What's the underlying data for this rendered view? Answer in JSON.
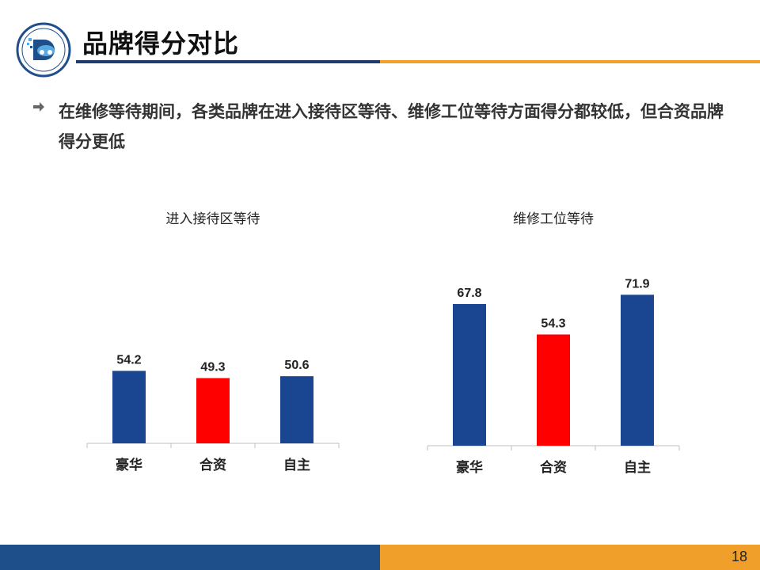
{
  "slide": {
    "title": "品牌得分对比",
    "bullet": "在维修等待期间，各类品牌在进入接待区等待、维修工位等待方面得分都较低，但合资品牌得分更低",
    "page_number": "18"
  },
  "colors": {
    "bar_primary": "#1a4591",
    "bar_highlight": "#ff0000",
    "title_rule_blue": "#1f3a6e",
    "accent_orange": "#f0a02a"
  },
  "chart_data": [
    {
      "type": "bar",
      "title": "进入接待区等待",
      "categories": [
        "豪华",
        "合资",
        "自主"
      ],
      "values": [
        54.2,
        49.3,
        50.6
      ],
      "value_labels": [
        "54.2",
        "49.3",
        "50.6"
      ],
      "highlight_index": 1,
      "grid": false,
      "legend": "none"
    },
    {
      "type": "bar",
      "title": "维修工位等待",
      "categories": [
        "豪华",
        "合资",
        "自主"
      ],
      "values": [
        67.8,
        54.3,
        71.9
      ],
      "value_labels": [
        "67.8",
        "54.3",
        "71.9"
      ],
      "highlight_index": 1,
      "grid": false,
      "legend": "none"
    }
  ]
}
